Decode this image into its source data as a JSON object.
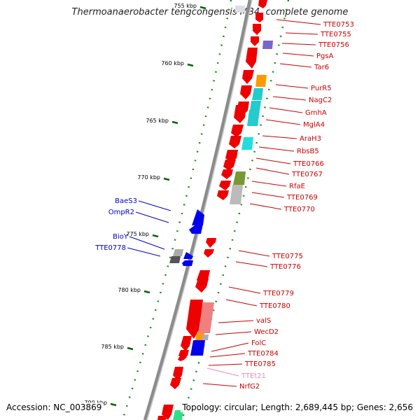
{
  "title": "Thermoanaerobacter tengcongensis MB4, complete genome",
  "footer": {
    "accession": "Accession: NC_003869",
    "summary": "Topology: circular; Length: 2,689,445 bp; Genes: 2,656"
  },
  "colors": {
    "right_label": "#cc0000",
    "left_label": "#0000cc",
    "rna_label": "#ee88bb",
    "tick": "#006600",
    "backbone": "#888888"
  },
  "ticks": [
    {
      "label": "755 kbp"
    },
    {
      "label": "760 kbp"
    },
    {
      "label": "765 kbp"
    },
    {
      "label": "770 kbp"
    },
    {
      "label": "775 kbp"
    },
    {
      "label": "780 kbp"
    },
    {
      "label": "785 kbp"
    },
    {
      "label": "790 kbp"
    }
  ],
  "right_labels": [
    {
      "text": "TTE0753",
      "kind": "gene"
    },
    {
      "text": "TTE0755",
      "kind": "gene"
    },
    {
      "text": "TTE0756",
      "kind": "gene"
    },
    {
      "text": "PgsA",
      "kind": "gene"
    },
    {
      "text": "Tar6",
      "kind": "gene"
    },
    {
      "text": "PurR5",
      "kind": "gene"
    },
    {
      "text": "NagC2",
      "kind": "gene"
    },
    {
      "text": "GmhA",
      "kind": "gene"
    },
    {
      "text": "MglA4",
      "kind": "gene"
    },
    {
      "text": "AraH3",
      "kind": "gene"
    },
    {
      "text": "RbsB5",
      "kind": "gene"
    },
    {
      "text": "TTE0766",
      "kind": "gene"
    },
    {
      "text": "TTE0767",
      "kind": "gene"
    },
    {
      "text": "RfaE",
      "kind": "gene"
    },
    {
      "text": "TTE0769",
      "kind": "gene"
    },
    {
      "text": "TTE0770",
      "kind": "gene"
    },
    {
      "text": "TTE0775",
      "kind": "gene"
    },
    {
      "text": "TTE0776",
      "kind": "gene"
    },
    {
      "text": "TTE0779",
      "kind": "gene"
    },
    {
      "text": "TTE0780",
      "kind": "gene"
    },
    {
      "text": "valS",
      "kind": "gene"
    },
    {
      "text": "WecD2",
      "kind": "gene"
    },
    {
      "text": "FolC",
      "kind": "gene"
    },
    {
      "text": "TTE0784",
      "kind": "gene"
    },
    {
      "text": "TTE0785",
      "kind": "gene"
    },
    {
      "text": "TTEt21",
      "kind": "rna"
    },
    {
      "text": "NrfG2",
      "kind": "gene"
    }
  ],
  "left_labels": [
    {
      "text": "BaeS3"
    },
    {
      "text": "OmpR2"
    },
    {
      "text": "BioY"
    },
    {
      "text": "TTE0778"
    }
  ]
}
